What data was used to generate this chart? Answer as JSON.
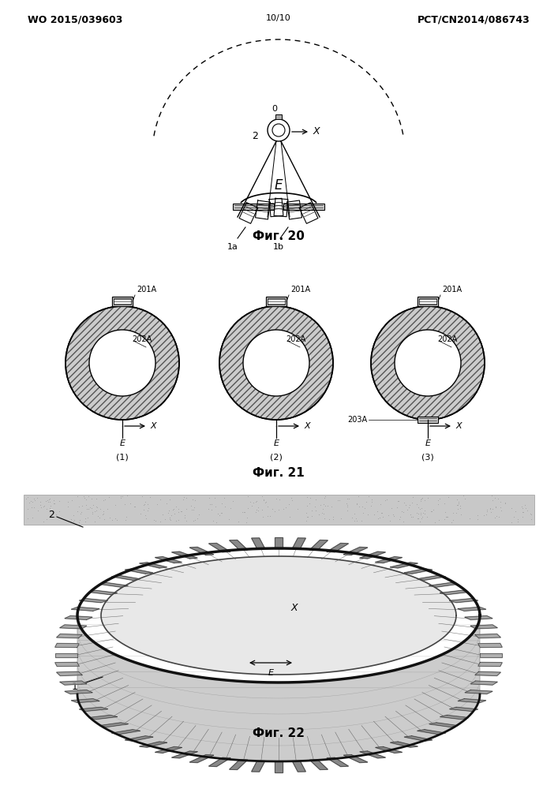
{
  "header_left": "WO 2015/039603",
  "header_right": "PCT/CN2014/086743",
  "header_center": "10/10",
  "fig20_caption": "Фиг. 20",
  "fig21_caption": "Фиг. 21",
  "fig22_caption": "Фиг. 22",
  "bg_color": "#ffffff",
  "line_color": "#000000",
  "font_size_header": 9,
  "font_size_label": 8,
  "font_size_caption": 11
}
